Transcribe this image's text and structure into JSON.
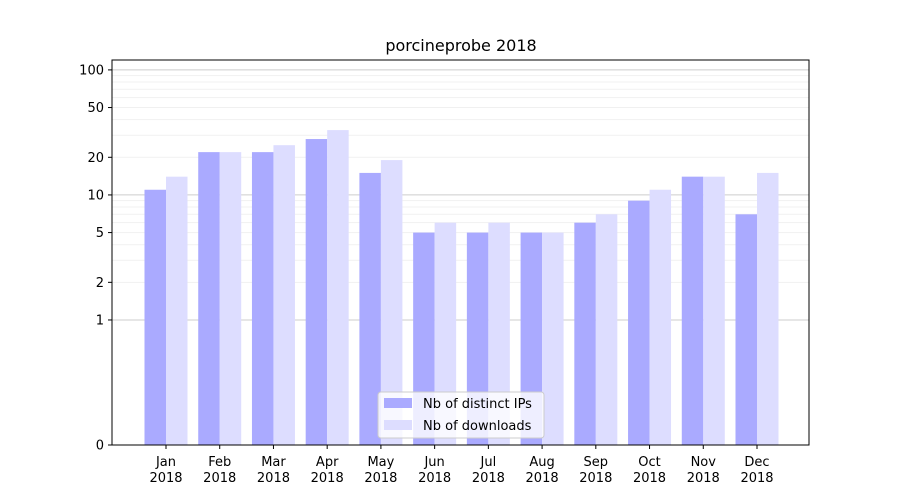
{
  "chart_data": {
    "type": "bar",
    "title": "porcineprobe 2018",
    "xlabel": "",
    "ylabel": "",
    "yscale": "symlog",
    "ylim": [
      0,
      120
    ],
    "grid": "horizontal",
    "legend_position": "bottom-center",
    "y_ticks": [
      {
        "value": 0,
        "label": "0"
      },
      {
        "value": 1,
        "label": "1"
      },
      {
        "value": 2,
        "label": "2"
      },
      {
        "value": 5,
        "label": "5"
      },
      {
        "value": 10,
        "label": "10"
      },
      {
        "value": 20,
        "label": "20"
      },
      {
        "value": 50,
        "label": "50"
      },
      {
        "value": 100,
        "label": "100"
      }
    ],
    "categories": [
      [
        "Jan",
        "2018"
      ],
      [
        "Feb",
        "2018"
      ],
      [
        "Mar",
        "2018"
      ],
      [
        "Apr",
        "2018"
      ],
      [
        "May",
        "2018"
      ],
      [
        "Jun",
        "2018"
      ],
      [
        "Jul",
        "2018"
      ],
      [
        "Aug",
        "2018"
      ],
      [
        "Sep",
        "2018"
      ],
      [
        "Oct",
        "2018"
      ],
      [
        "Nov",
        "2018"
      ],
      [
        "Dec",
        "2018"
      ]
    ],
    "series": [
      {
        "name": "Nb of distinct IPs",
        "color": "#aaaaff",
        "values": [
          11,
          22,
          22,
          28,
          15,
          5,
          5,
          5,
          6,
          9,
          14,
          7
        ]
      },
      {
        "name": "Nb of downloads",
        "color": "#ddddff",
        "values": [
          14,
          22,
          25,
          33,
          19,
          6,
          6,
          5,
          7,
          11,
          14,
          15
        ]
      }
    ]
  }
}
